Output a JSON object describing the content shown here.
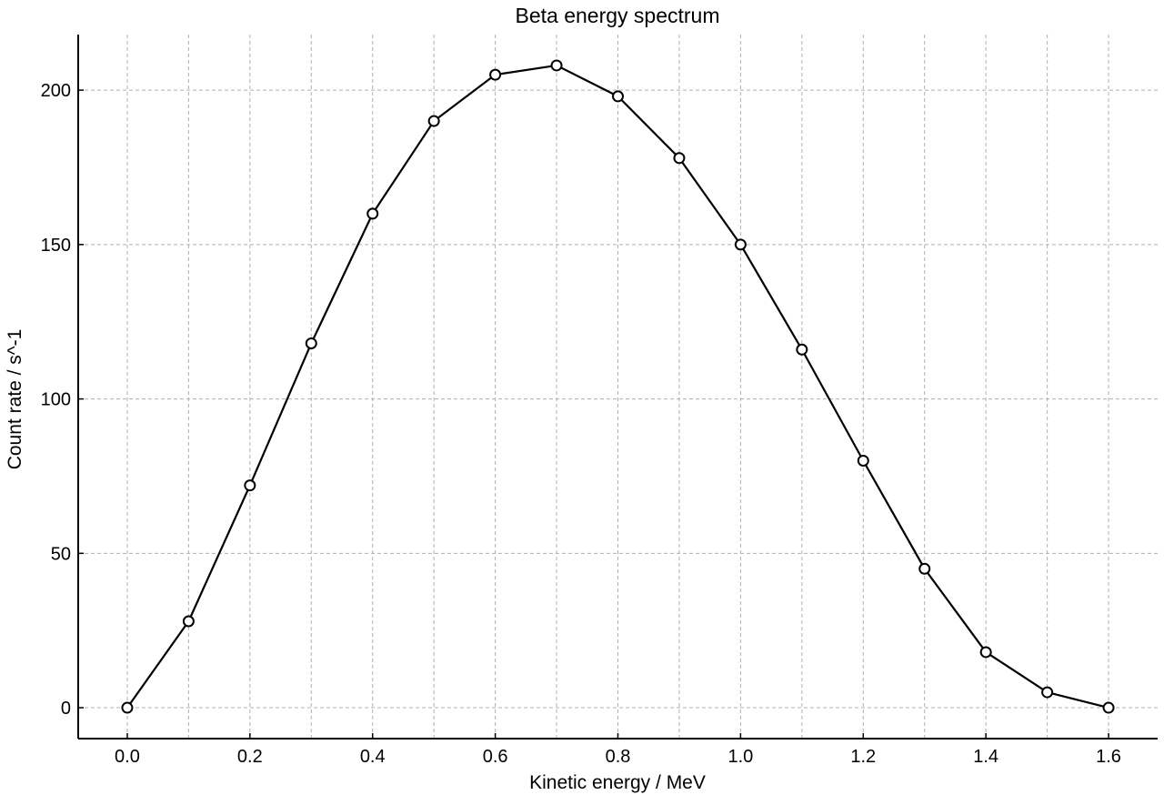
{
  "chart_data": {
    "type": "line",
    "title": "Beta energy spectrum",
    "xlabel": "Kinetic energy / MeV",
    "ylabel": "Count rate / s^-1",
    "xlim": [
      -0.08,
      1.68
    ],
    "ylim": [
      -10,
      218
    ],
    "xticks": [
      0.0,
      0.2,
      0.4,
      0.6,
      0.8,
      1.0,
      1.2,
      1.4,
      1.6
    ],
    "xtick_labels": [
      "0.0",
      "0.2",
      "0.4",
      "0.6",
      "0.8",
      "1.0",
      "1.2",
      "1.4",
      "1.6"
    ],
    "yticks": [
      0,
      50,
      100,
      150,
      200
    ],
    "ytick_labels": [
      "0",
      "50",
      "100",
      "150",
      "200"
    ],
    "x_minor_grid": [
      0.1,
      0.3,
      0.5,
      0.7,
      0.9,
      1.1,
      1.3,
      1.5
    ],
    "grid": true,
    "legend": "none",
    "series": [
      {
        "x": [
          0.0,
          0.1,
          0.2,
          0.3,
          0.4,
          0.5,
          0.6,
          0.7,
          0.8,
          0.9,
          1.0,
          1.1,
          1.2,
          1.3,
          1.4,
          1.5,
          1.6
        ],
        "y": [
          0,
          28,
          72,
          118,
          160,
          190,
          205,
          208,
          198,
          178,
          150,
          116,
          80,
          45,
          18,
          5,
          0
        ],
        "color": "#000000",
        "marker": "open-circle"
      }
    ]
  }
}
